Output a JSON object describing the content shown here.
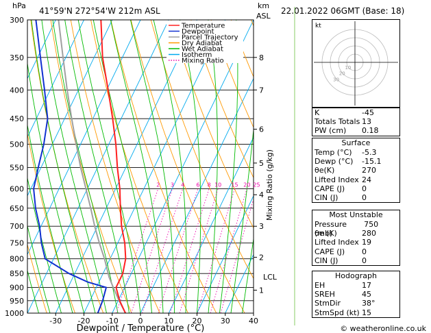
{
  "header": {
    "hpa_label": "hPa",
    "location": "41°59'N  272°54'W  212m  ASL",
    "km_label": "km",
    "asl_label": "ASL",
    "datetime": "22.01.2022  06GMT  (Base: 18)"
  },
  "colors": {
    "temperature": "#ff2020",
    "dewpoint": "#1030d0",
    "parcel": "#a0a0a0",
    "dry_adiabat": "#ff9900",
    "wet_adiabat": "#00bb00",
    "isotherm": "#00aaee",
    "mixing_ratio": "#ee00aa"
  },
  "legend": {
    "items": [
      {
        "label": "Temperature",
        "style": "solid",
        "color": "#ff2020"
      },
      {
        "label": "Dewpoint",
        "style": "solid",
        "color": "#1030d0"
      },
      {
        "label": "Parcel Trajectory",
        "style": "solid",
        "color": "#a0a0a0"
      },
      {
        "label": "Dry Adiabat",
        "style": "solid",
        "color": "#ff9900"
      },
      {
        "label": "Wet Adiabat",
        "style": "solid",
        "color": "#00bb00"
      },
      {
        "label": "Isotherm",
        "style": "solid",
        "color": "#00aaee"
      },
      {
        "label": "Mixing Ratio",
        "style": "dotted",
        "color": "#ee00aa"
      }
    ]
  },
  "chart_data": {
    "type": "line",
    "skew": 50,
    "xlabel": "Dewpoint / Temperature (°C)",
    "ylabel_right": "Mixing Ratio (g/kg)",
    "xlim": [
      -40,
      40
    ],
    "ylim": [
      1000,
      300
    ],
    "pressure_ticks": [
      300,
      350,
      400,
      450,
      500,
      550,
      600,
      650,
      700,
      750,
      800,
      850,
      900,
      950,
      1000
    ],
    "temp_ticks": [
      -30,
      -20,
      -10,
      0,
      10,
      20,
      30,
      40
    ],
    "km_ticks": [
      {
        "label": "1",
        "p": 910
      },
      {
        "label": "2",
        "p": 795
      },
      {
        "label": "3",
        "p": 700
      },
      {
        "label": "4",
        "p": 615
      },
      {
        "label": "5",
        "p": 540
      },
      {
        "label": "6",
        "p": 470
      },
      {
        "label": "7",
        "p": 400
      },
      {
        "label": "8",
        "p": 350
      }
    ],
    "lcl": {
      "label": "LCL",
      "p": 862
    },
    "mixing_ratio_labels": [
      "2",
      "3",
      "4",
      "6",
      "8",
      "10",
      "15",
      "20",
      "25"
    ],
    "mixing_ratio_values": [
      2,
      3,
      4,
      6,
      8,
      10,
      15,
      20,
      25
    ],
    "mixing_ratio_label_p": 600,
    "temperature": [
      {
        "p": 1000,
        "t": -5.3
      },
      {
        "p": 950,
        "t": -9.5
      },
      {
        "p": 900,
        "t": -13
      },
      {
        "p": 850,
        "t": -13
      },
      {
        "p": 800,
        "t": -14.5
      },
      {
        "p": 750,
        "t": -17.5
      },
      {
        "p": 700,
        "t": -21.5
      },
      {
        "p": 650,
        "t": -25
      },
      {
        "p": 600,
        "t": -28.5
      },
      {
        "p": 550,
        "t": -33
      },
      {
        "p": 500,
        "t": -37.5
      },
      {
        "p": 450,
        "t": -43
      },
      {
        "p": 400,
        "t": -49.5
      },
      {
        "p": 350,
        "t": -57
      },
      {
        "p": 300,
        "t": -64
      }
    ],
    "dewpoint": [
      {
        "p": 1000,
        "t": -15.1
      },
      {
        "p": 950,
        "t": -15.5
      },
      {
        "p": 900,
        "t": -16.5
      },
      {
        "p": 880,
        "t": -24
      },
      {
        "p": 850,
        "t": -32
      },
      {
        "p": 800,
        "t": -43
      },
      {
        "p": 750,
        "t": -47
      },
      {
        "p": 700,
        "t": -50.5
      },
      {
        "p": 650,
        "t": -55
      },
      {
        "p": 600,
        "t": -59
      },
      {
        "p": 550,
        "t": -61
      },
      {
        "p": 500,
        "t": -63
      },
      {
        "p": 450,
        "t": -66
      },
      {
        "p": 400,
        "t": -72
      },
      {
        "p": 350,
        "t": -79
      },
      {
        "p": 300,
        "t": -87
      }
    ],
    "parcel": [
      {
        "p": 1000,
        "t": -5.3
      },
      {
        "p": 950,
        "t": -9.7
      },
      {
        "p": 900,
        "t": -14.0
      },
      {
        "p": 862,
        "t": -17.3
      },
      {
        "p": 800,
        "t": -22
      },
      {
        "p": 750,
        "t": -26.5
      },
      {
        "p": 700,
        "t": -31
      },
      {
        "p": 650,
        "t": -35.5
      },
      {
        "p": 600,
        "t": -40.5
      },
      {
        "p": 550,
        "t": -46
      },
      {
        "p": 500,
        "t": -51.5
      },
      {
        "p": 450,
        "t": -57.5
      },
      {
        "p": 400,
        "t": -64
      },
      {
        "p": 350,
        "t": -71
      },
      {
        "p": 300,
        "t": -79
      }
    ]
  },
  "indices": {
    "rows": [
      {
        "label": "K",
        "value": "-45"
      },
      {
        "label": "Totals Totals",
        "value": "13"
      },
      {
        "label": "PW (cm)",
        "value": "0.18"
      }
    ]
  },
  "surface": {
    "title": "Surface",
    "rows": [
      {
        "label": "Temp (°C)",
        "value": "-5.3"
      },
      {
        "label": "Dewp (°C)",
        "value": "-15.1"
      },
      {
        "label": "θe(K)",
        "value": "270"
      },
      {
        "label": "Lifted Index",
        "value": "24"
      },
      {
        "label": "CAPE (J)",
        "value": "0"
      },
      {
        "label": "CIN (J)",
        "value": "0"
      }
    ]
  },
  "most_unstable": {
    "title": "Most Unstable",
    "rows": [
      {
        "label": "Pressure (mb)",
        "value": "750"
      },
      {
        "label": "θe (K)",
        "value": "280"
      },
      {
        "label": "Lifted Index",
        "value": "19"
      },
      {
        "label": "CAPE (J)",
        "value": "0"
      },
      {
        "label": "CIN (J)",
        "value": "0"
      }
    ]
  },
  "hodograph_table": {
    "title": "Hodograph",
    "rows": [
      {
        "label": "EH",
        "value": "17"
      },
      {
        "label": "SREH",
        "value": "45"
      },
      {
        "label": "StmDir",
        "value": "38°"
      },
      {
        "label": "StmSpd (kt)",
        "value": "15"
      }
    ]
  },
  "hodograph": {
    "unit_label": "kt",
    "ring_labels": [
      "10",
      "20",
      "30"
    ]
  },
  "footer": {
    "credit": "© weatheronline.co.uk"
  }
}
